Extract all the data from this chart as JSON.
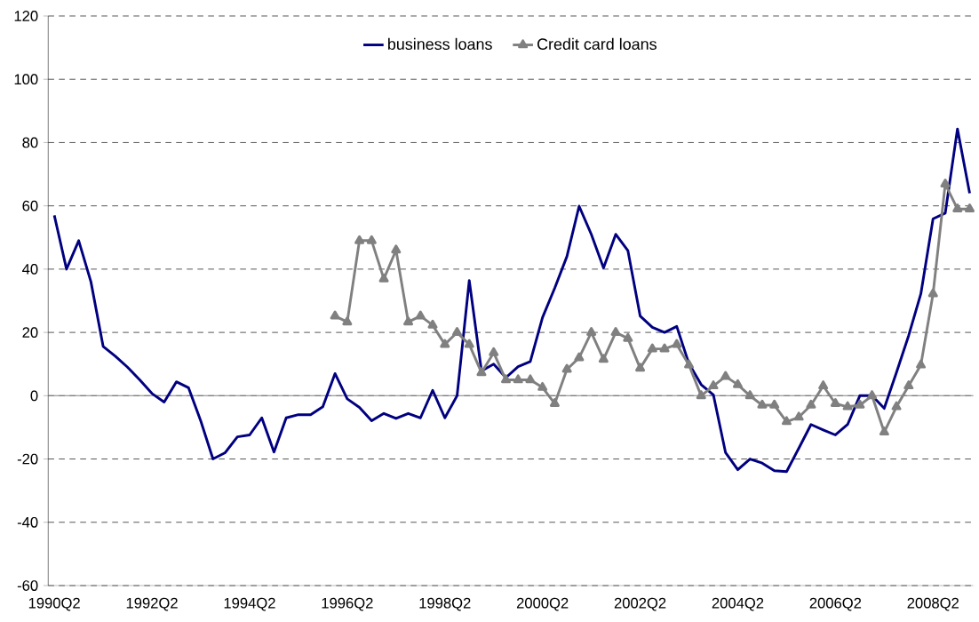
{
  "chart_data": {
    "type": "line",
    "categories": [
      "1990Q2",
      null,
      null,
      null,
      null,
      null,
      null,
      null,
      "1992Q2",
      null,
      null,
      null,
      null,
      null,
      null,
      null,
      "1994Q2",
      null,
      null,
      null,
      null,
      null,
      null,
      null,
      "1996Q2",
      null,
      null,
      null,
      null,
      null,
      null,
      null,
      "1998Q2",
      null,
      null,
      null,
      null,
      null,
      null,
      null,
      "2000Q2",
      null,
      null,
      null,
      null,
      null,
      null,
      null,
      "2002Q2",
      null,
      null,
      null,
      null,
      null,
      null,
      null,
      "2004Q2",
      null,
      null,
      null,
      null,
      null,
      null,
      null,
      "2006Q2",
      null,
      null,
      null,
      null,
      null,
      null,
      null,
      "2008Q2",
      null,
      null,
      null
    ],
    "series": [
      {
        "name": "business loans",
        "color": "#000080",
        "marker": "none",
        "values": [
          57,
          40,
          49,
          36,
          15.6,
          12.5,
          9,
          5,
          0.7,
          -2,
          4.4,
          2.5,
          -8,
          -20,
          -18,
          -13,
          -12.4,
          -7,
          -17.8,
          -7,
          -6,
          -6,
          -3.5,
          7,
          -1,
          -3.7,
          -7.9,
          -5.6,
          -7.2,
          -5.6,
          -7,
          1.7,
          -7,
          0,
          36.4,
          7.8,
          10,
          5.7,
          9.2,
          10.8,
          24.7,
          34,
          44,
          59.9,
          51,
          40.4,
          51,
          45.8,
          25.2,
          21.6,
          20,
          21.9,
          10.1,
          3.5,
          0.3,
          -18,
          -23.4,
          -20,
          -21.3,
          -23.7,
          -24,
          -16.6,
          -9.1,
          -10.8,
          -12.4,
          -9.1,
          0,
          0,
          -4,
          7.3,
          19,
          32.2,
          55.9,
          57.7,
          84.3,
          64
        ]
      },
      {
        "name": "Credit card loans",
        "color": "#808080",
        "marker": "triangle",
        "values": [
          null,
          null,
          null,
          null,
          null,
          null,
          null,
          null,
          null,
          null,
          null,
          null,
          null,
          null,
          null,
          null,
          null,
          null,
          null,
          null,
          null,
          null,
          null,
          25.2,
          23.3,
          49,
          49,
          36.9,
          46,
          23.3,
          25.2,
          22.3,
          16.2,
          20,
          16.2,
          7.3,
          13.6,
          5,
          5,
          5,
          2.6,
          -2.5,
          8.3,
          12,
          20,
          11.5,
          20,
          18.1,
          8.7,
          14.8,
          14.8,
          16.2,
          9.7,
          0,
          3.1,
          6.1,
          3.5,
          0,
          -3,
          -3,
          -8.2,
          -6.8,
          -3,
          3.1,
          -2.5,
          -3.5,
          -3,
          0,
          -11.5,
          -3.5,
          3.1,
          9.7,
          32.2,
          66.9,
          59,
          59
        ]
      }
    ],
    "ylim": [
      -60,
      120
    ],
    "yticks": [
      -60,
      -40,
      -20,
      0,
      20,
      40,
      60,
      80,
      100,
      120
    ],
    "grid": "y",
    "legend": "top"
  }
}
